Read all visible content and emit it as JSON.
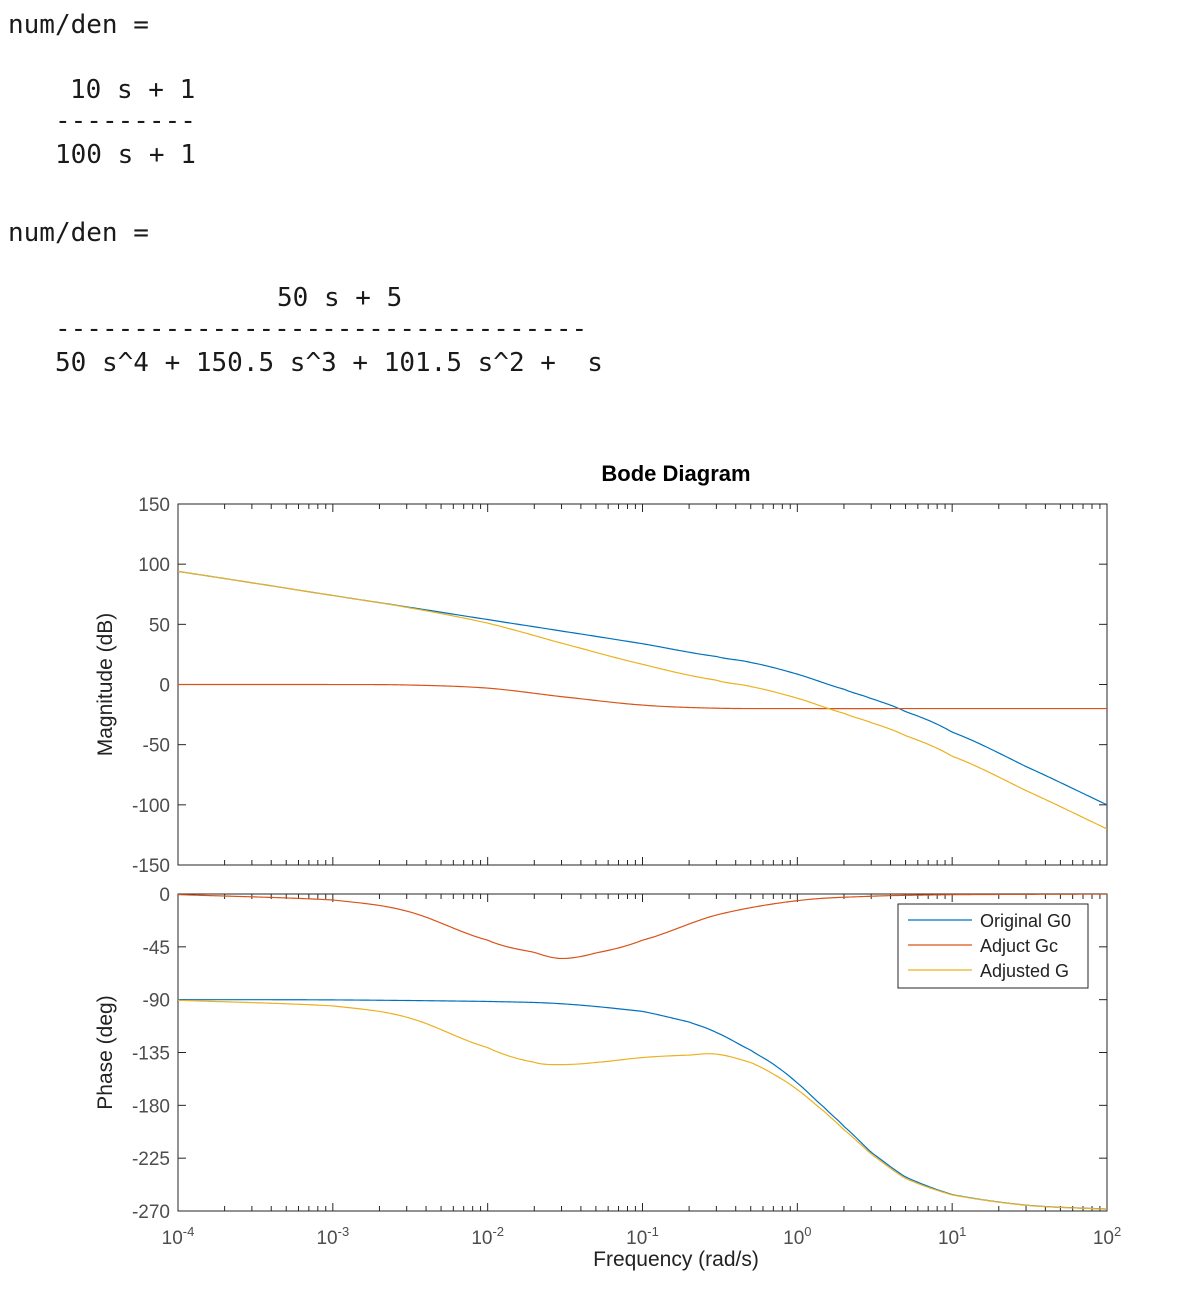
{
  "console": {
    "tf1": {
      "label": "num/den =",
      "numerator": "10 s + 1",
      "rule": "---------",
      "denominator": "100 s + 1"
    },
    "tf2": {
      "label": "num/den =",
      "numerator": "50 s + 5",
      "rule": "----------------------------------",
      "denominator": "50 s^4 + 150.5 s^3 + 101.5 s^2 +  s"
    }
  },
  "chart_data": {
    "type": "line",
    "title": "Bode Diagram",
    "xlabel": "Frequency  (rad/s)",
    "xscale": "log",
    "xlim": [
      0.0001,
      100
    ],
    "xticks": [
      {
        "value": 0.0001,
        "base": "10",
        "exp": "-4"
      },
      {
        "value": 0.001,
        "base": "10",
        "exp": "-3"
      },
      {
        "value": 0.01,
        "base": "10",
        "exp": "-2"
      },
      {
        "value": 0.1,
        "base": "10",
        "exp": "-1"
      },
      {
        "value": 1,
        "base": "10",
        "exp": "0"
      },
      {
        "value": 10,
        "base": "10",
        "exp": "1"
      },
      {
        "value": 100,
        "base": "10",
        "exp": "2"
      }
    ],
    "legend": {
      "location": "top-right of phase panel",
      "entries": [
        "Original G0",
        "Adjuct Gc",
        "Adjusted G"
      ]
    },
    "colors": {
      "Original G0": "#0072bd",
      "Adjuct Gc": "#d95319",
      "Adjusted G": "#edb120",
      "axes": "#262626",
      "grid_tick": "#262626"
    },
    "panels": [
      {
        "id": "magnitude",
        "ylabel": "Magnitude (dB)",
        "ylim": [
          -150,
          150
        ],
        "yticks": [
          150,
          100,
          50,
          0,
          -50,
          -100,
          -150
        ],
        "series": [
          {
            "name": "Original G0",
            "x": [
              0.0001,
              0.0003,
              0.001,
              0.003,
              0.01,
              0.03,
              0.1,
              0.3,
              0.5,
              1,
              2,
              3,
              5,
              10,
              30,
              100
            ],
            "y": [
              94,
              84.5,
              74,
              64.5,
              54,
              44.4,
              33.9,
              23.3,
              18.3,
              8.6,
              -3.9,
              -11.7,
              -22.5,
              -39.6,
              -68.2,
              -100
            ]
          },
          {
            "name": "Adjuct Gc",
            "x": [
              0.0001,
              0.0003,
              0.001,
              0.003,
              0.01,
              0.03,
              0.1,
              0.3,
              1,
              10,
              100
            ],
            "y": [
              0,
              0,
              -0.04,
              -0.4,
              -3,
              -10.1,
              -17.1,
              -19.7,
              -20,
              -20,
              -20
            ]
          },
          {
            "name": "Adjusted G",
            "x": [
              0.0001,
              0.0003,
              0.001,
              0.003,
              0.01,
              0.03,
              0.1,
              0.3,
              0.5,
              1,
              2,
              3,
              5,
              10,
              30,
              100
            ],
            "y": [
              94,
              84.5,
              74,
              64.1,
              51,
              34.3,
              16.8,
              3.6,
              -1.7,
              -11.4,
              -23.9,
              -31.7,
              -42.5,
              -59.6,
              -88.2,
              -120
            ]
          }
        ]
      },
      {
        "id": "phase",
        "ylabel": "Phase (deg)",
        "ylim": [
          -270,
          0
        ],
        "yticks": [
          0,
          -45,
          -90,
          -135,
          -180,
          -225,
          -270
        ],
        "series": [
          {
            "name": "Original G0",
            "x": [
              0.0001,
              0.001,
              0.01,
              0.03,
              0.1,
              0.2,
              0.3,
              0.5,
              0.7,
              1,
              1.5,
              2,
              3,
              5,
              10,
              30,
              100
            ],
            "y": [
              -90,
              -90.2,
              -91.5,
              -93.5,
              -100,
              -109,
              -118,
              -133,
              -145,
              -161,
              -182,
              -198,
              -220,
              -241,
              -256,
              -265,
              -268.4
            ]
          },
          {
            "name": "Adjuct Gc",
            "x": [
              0.0001,
              0.001,
              0.003,
              0.01,
              0.02,
              0.03,
              0.05,
              0.1,
              0.3,
              1,
              3,
              10,
              100
            ],
            "y": [
              -0.5,
              -5.1,
              -14.6,
              -39.3,
              -49.7,
              -54.9,
              -50.2,
              -39.3,
              -17.9,
              -5.7,
              -1.9,
              -0.6,
              -0.1
            ]
          },
          {
            "name": "Adjusted G",
            "x": [
              0.0001,
              0.001,
              0.003,
              0.01,
              0.02,
              0.03,
              0.05,
              0.1,
              0.2,
              0.3,
              0.5,
              0.7,
              1,
              1.5,
              2,
              3,
              5,
              10,
              30,
              100
            ],
            "y": [
              -90.5,
              -95.3,
              -105,
              -130.8,
              -143.3,
              -145.3,
              -143.5,
              -139.3,
              -137.2,
              -136.4,
              -143.5,
              -153.4,
              -166.7,
              -185.4,
              -200.9,
              -221.5,
              -242.3,
              -256.3,
              -265.1,
              -268.5
            ]
          }
        ]
      }
    ]
  }
}
